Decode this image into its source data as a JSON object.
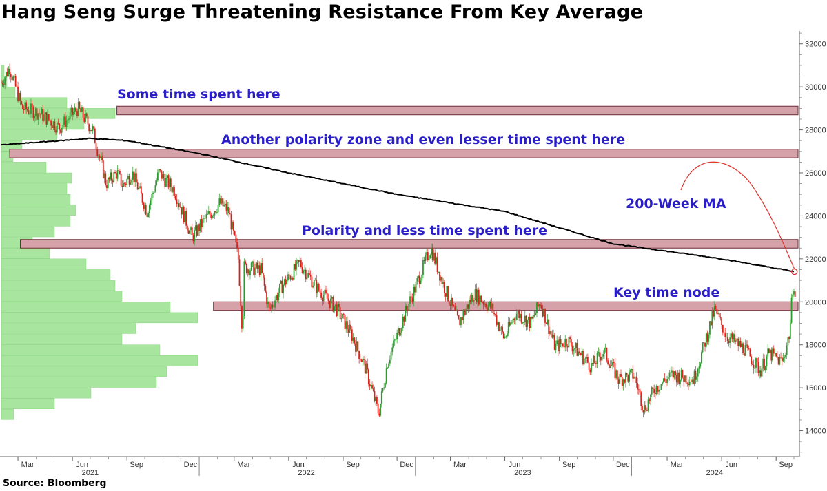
{
  "title": "Hang Seng Surge Threatening Resistance From Key Average",
  "source": "Source: Bloomberg",
  "colors": {
    "annotation": "#2a1fc7",
    "zone_fill": "#d4a2a8",
    "zone_stroke": "#6e2a36",
    "up_candle": "#2f9a2f",
    "down_candle": "#d8231c",
    "ma_line": "#000000",
    "profile_fill": "#a8e6a0",
    "arrow": "#e0302a"
  },
  "annotations": [
    {
      "key": "some_time",
      "text": "Some time spent here"
    },
    {
      "key": "another_polarity",
      "text": "Another polarity zone and even lesser time spent here"
    },
    {
      "key": "ma_label",
      "text": "200-Week MA"
    },
    {
      "key": "polarity_less",
      "text": "Polarity and less time spent here"
    },
    {
      "key": "key_node",
      "text": "Key time node"
    }
  ],
  "chart_data": {
    "type": "candlestick",
    "title": "Hang Seng Surge Threatening Resistance From Key Average",
    "y_axis": {
      "position": "right",
      "ylim": [
        12800,
        32600
      ],
      "ticks": [
        14000,
        16000,
        18000,
        20000,
        22000,
        24000,
        26000,
        28000,
        30000,
        32000
      ]
    },
    "x_axis": {
      "start": "2021-02-01",
      "end": "2024-10-08",
      "month_ticks": [
        {
          "label": "Mar",
          "date": "2021-03-01"
        },
        {
          "label": "Jun",
          "date": "2021-06-01"
        },
        {
          "label": "Sep",
          "date": "2021-09-01"
        },
        {
          "label": "Dec",
          "date": "2021-12-01"
        },
        {
          "label": "Mar",
          "date": "2022-03-01"
        },
        {
          "label": "Jun",
          "date": "2022-06-01"
        },
        {
          "label": "Sep",
          "date": "2022-09-01"
        },
        {
          "label": "Dec",
          "date": "2022-12-01"
        },
        {
          "label": "Mar",
          "date": "2023-03-01"
        },
        {
          "label": "Jun",
          "date": "2023-06-01"
        },
        {
          "label": "Sep",
          "date": "2023-09-01"
        },
        {
          "label": "Dec",
          "date": "2023-12-01"
        },
        {
          "label": "Mar",
          "date": "2024-03-01"
        },
        {
          "label": "Jun",
          "date": "2024-06-01"
        },
        {
          "label": "Sep",
          "date": "2024-09-01"
        }
      ],
      "year_labels": [
        {
          "label": "2021",
          "date": "2021-07-01"
        },
        {
          "label": "2022",
          "date": "2022-07-01"
        },
        {
          "label": "2023",
          "date": "2023-07-01"
        },
        {
          "label": "2024",
          "date": "2024-05-20"
        }
      ],
      "year_separators": [
        "2022-01-01",
        "2023-01-01",
        "2024-01-01"
      ]
    },
    "price_anchors": [
      {
        "date": "2021-02-01",
        "value": 30200
      },
      {
        "date": "2021-02-15",
        "value": 30900
      },
      {
        "date": "2021-03-08",
        "value": 29000
      },
      {
        "date": "2021-04-05",
        "value": 28800
      },
      {
        "date": "2021-05-10",
        "value": 28100
      },
      {
        "date": "2021-06-10",
        "value": 29000
      },
      {
        "date": "2021-07-05",
        "value": 28000
      },
      {
        "date": "2021-07-28",
        "value": 25500
      },
      {
        "date": "2021-08-15",
        "value": 26000
      },
      {
        "date": "2021-08-25",
        "value": 25400
      },
      {
        "date": "2021-09-10",
        "value": 26000
      },
      {
        "date": "2021-10-05",
        "value": 24200
      },
      {
        "date": "2021-10-25",
        "value": 26000
      },
      {
        "date": "2021-11-20",
        "value": 25200
      },
      {
        "date": "2021-12-20",
        "value": 23000
      },
      {
        "date": "2022-01-10",
        "value": 23800
      },
      {
        "date": "2022-02-05",
        "value": 24600
      },
      {
        "date": "2022-02-20",
        "value": 24200
      },
      {
        "date": "2022-03-08",
        "value": 22000
      },
      {
        "date": "2022-03-15",
        "value": 18600
      },
      {
        "date": "2022-03-18",
        "value": 21600
      },
      {
        "date": "2022-04-15",
        "value": 21500
      },
      {
        "date": "2022-04-29",
        "value": 19600
      },
      {
        "date": "2022-05-20",
        "value": 20700
      },
      {
        "date": "2022-06-20",
        "value": 21800
      },
      {
        "date": "2022-07-20",
        "value": 20600
      },
      {
        "date": "2022-08-20",
        "value": 19700
      },
      {
        "date": "2022-09-15",
        "value": 18500
      },
      {
        "date": "2022-10-10",
        "value": 16800
      },
      {
        "date": "2022-10-31",
        "value": 14800
      },
      {
        "date": "2022-11-15",
        "value": 17200
      },
      {
        "date": "2022-12-15",
        "value": 19500
      },
      {
        "date": "2023-01-27",
        "value": 22500
      },
      {
        "date": "2023-02-20",
        "value": 20600
      },
      {
        "date": "2023-03-15",
        "value": 19000
      },
      {
        "date": "2023-04-10",
        "value": 20400
      },
      {
        "date": "2023-05-10",
        "value": 19700
      },
      {
        "date": "2023-05-31",
        "value": 18300
      },
      {
        "date": "2023-06-20",
        "value": 19500
      },
      {
        "date": "2023-07-15",
        "value": 19000
      },
      {
        "date": "2023-07-31",
        "value": 20000
      },
      {
        "date": "2023-08-25",
        "value": 17900
      },
      {
        "date": "2023-09-15",
        "value": 18200
      },
      {
        "date": "2023-10-25",
        "value": 17000
      },
      {
        "date": "2023-11-15",
        "value": 17700
      },
      {
        "date": "2023-12-10",
        "value": 16400
      },
      {
        "date": "2024-01-05",
        "value": 16600
      },
      {
        "date": "2024-01-22",
        "value": 15000
      },
      {
        "date": "2024-02-10",
        "value": 16000
      },
      {
        "date": "2024-03-10",
        "value": 16600
      },
      {
        "date": "2024-04-15",
        "value": 16400
      },
      {
        "date": "2024-05-20",
        "value": 19600
      },
      {
        "date": "2024-06-10",
        "value": 18400
      },
      {
        "date": "2024-07-10",
        "value": 17800
      },
      {
        "date": "2024-08-05",
        "value": 16800
      },
      {
        "date": "2024-08-20",
        "value": 17600
      },
      {
        "date": "2024-09-05",
        "value": 17300
      },
      {
        "date": "2024-09-12",
        "value": 17200
      },
      {
        "date": "2024-09-24",
        "value": 18600
      },
      {
        "date": "2024-09-30",
        "value": 21100
      },
      {
        "date": "2024-10-03",
        "value": 20200
      }
    ],
    "moving_average_200w": [
      {
        "date": "2021-02-01",
        "value": 27300
      },
      {
        "date": "2021-07-01",
        "value": 27600
      },
      {
        "date": "2021-09-01",
        "value": 27500
      },
      {
        "date": "2022-01-01",
        "value": 26900
      },
      {
        "date": "2022-06-01",
        "value": 26000
      },
      {
        "date": "2022-12-01",
        "value": 25000
      },
      {
        "date": "2023-06-01",
        "value": 24200
      },
      {
        "date": "2023-12-01",
        "value": 22700
      },
      {
        "date": "2024-06-01",
        "value": 22000
      },
      {
        "date": "2024-10-03",
        "value": 21400
      }
    ],
    "resistance_zones": [
      {
        "low": 28700,
        "high": 29100,
        "start": "2021-08-15",
        "end": "2024-10-08"
      },
      {
        "low": 26700,
        "high": 27100,
        "start": "2021-02-15",
        "end": "2024-10-08"
      },
      {
        "low": 22500,
        "high": 22900,
        "start": "2021-03-05",
        "end": "2024-10-08"
      },
      {
        "low": 19600,
        "high": 20000,
        "start": "2022-01-25",
        "end": "2024-10-08"
      }
    ],
    "volume_profile": [
      {
        "level": 30750,
        "width": 4
      },
      {
        "level": 30250,
        "width": 8
      },
      {
        "level": 29750,
        "width": 20
      },
      {
        "level": 29250,
        "width": 95
      },
      {
        "level": 28750,
        "width": 165
      },
      {
        "level": 28250,
        "width": 120
      },
      {
        "level": 27750,
        "width": 80
      },
      {
        "level": 27250,
        "width": 30
      },
      {
        "level": 26750,
        "width": 17
      },
      {
        "level": 26250,
        "width": 65
      },
      {
        "level": 25750,
        "width": 102
      },
      {
        "level": 25250,
        "width": 95
      },
      {
        "level": 24750,
        "width": 100
      },
      {
        "level": 24250,
        "width": 108
      },
      {
        "level": 23750,
        "width": 100
      },
      {
        "level": 23250,
        "width": 77
      },
      {
        "level": 22750,
        "width": 45
      },
      {
        "level": 22250,
        "width": 70
      },
      {
        "level": 21750,
        "width": 123
      },
      {
        "level": 21250,
        "width": 158
      },
      {
        "level": 20750,
        "width": 165
      },
      {
        "level": 20250,
        "width": 175
      },
      {
        "level": 19750,
        "width": 245
      },
      {
        "level": 19250,
        "width": 285
      },
      {
        "level": 18750,
        "width": 195
      },
      {
        "level": 18250,
        "width": 175
      },
      {
        "level": 17750,
        "width": 230
      },
      {
        "level": 17250,
        "width": 285
      },
      {
        "level": 16750,
        "width": 240
      },
      {
        "level": 16250,
        "width": 225
      },
      {
        "level": 15750,
        "width": 130
      },
      {
        "level": 15250,
        "width": 77
      },
      {
        "level": 14750,
        "width": 18
      }
    ]
  }
}
